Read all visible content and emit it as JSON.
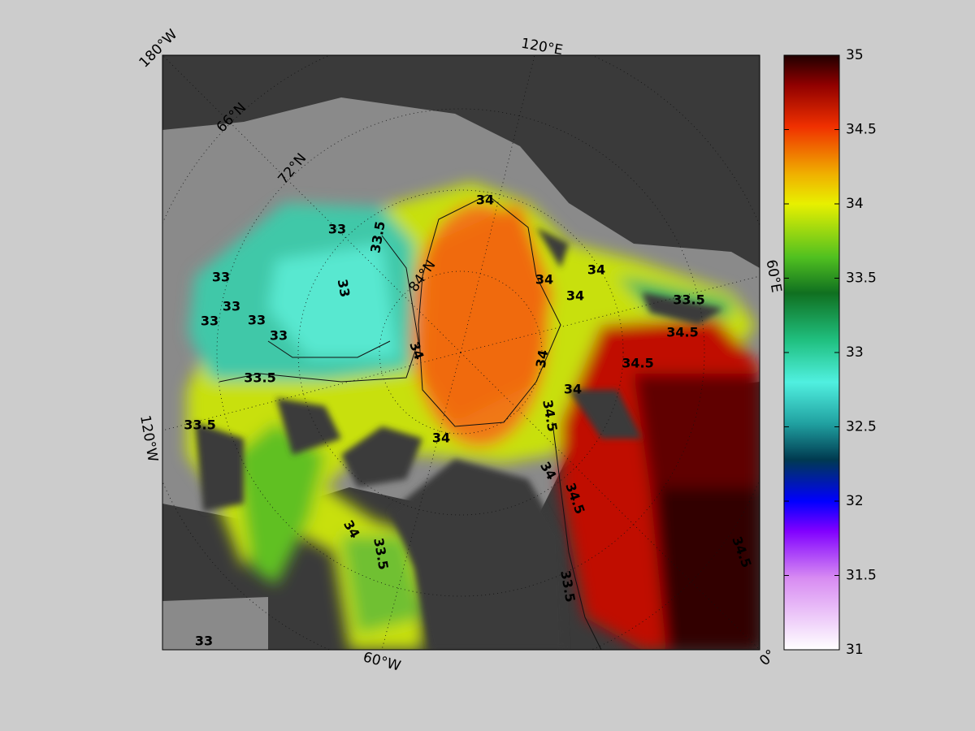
{
  "map": {
    "lon_labels": [
      "180°W",
      "120°E",
      "60°E",
      "0°",
      "60°W",
      "120°W"
    ],
    "lat_labels": [
      "66°N",
      "72°N",
      "84°N"
    ],
    "contour_labels": [
      "34",
      "34",
      "34",
      "34",
      "34",
      "34",
      "34",
      "34",
      "34",
      "34",
      "33.5",
      "33.5",
      "33.5",
      "33.5",
      "33.5",
      "33.5",
      "33",
      "33",
      "33",
      "33",
      "33",
      "33",
      "33",
      "33",
      "34.5",
      "34.5",
      "34.5",
      "34.5",
      "34.5"
    ]
  },
  "colorbar": {
    "lim": [
      31,
      35
    ],
    "ticks": [
      31,
      31.5,
      32,
      32.5,
      33,
      33.5,
      34,
      34.5,
      35
    ]
  }
}
